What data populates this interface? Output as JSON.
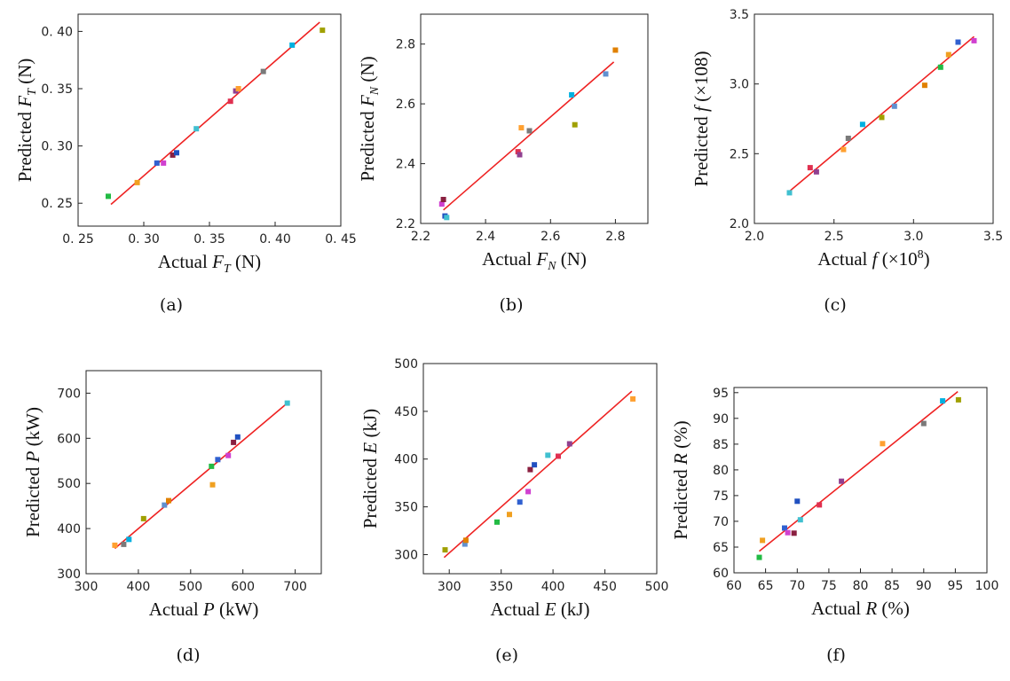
{
  "figure": {
    "point_colors": [
      "#22bb44",
      "#f0a020",
      "#3060d0",
      "#d040d0",
      "#8a2040",
      "#2050c0",
      "#40c0d0",
      "#e03050",
      "#904090",
      "#ffa030",
      "#7a7a7a",
      "#00b0e0",
      "#a0a000",
      "#6090d0",
      "#e08000"
    ],
    "fit_line_color": "#ee2222"
  },
  "chart_data": [
    {
      "type": "scatter",
      "caption": "(a)",
      "xlabel": {
        "pre": "Actual ",
        "var": "F",
        "sub": "T",
        "post": " (N)"
      },
      "ylabel": {
        "pre": "Predicted ",
        "var": "F",
        "sub": "T",
        "post": " (N)"
      },
      "xlim": [
        0.25,
        0.45
      ],
      "ylim": [
        0.23,
        0.415
      ],
      "xticks": [
        "0. 25",
        "0. 30",
        "0. 35",
        "0. 40",
        "0. 45"
      ],
      "xtick_values": [
        0.25,
        0.3,
        0.35,
        0.4,
        0.45
      ],
      "yticks": [
        "0. 25",
        "0. 30",
        "0. 35",
        "0. 40"
      ],
      "ytick_values": [
        0.25,
        0.3,
        0.35,
        0.4
      ],
      "x": [
        0.273,
        0.295,
        0.31,
        0.315,
        0.322,
        0.325,
        0.34,
        0.366,
        0.37,
        0.372,
        0.391,
        0.413,
        0.436
      ],
      "y": [
        0.256,
        0.268,
        0.285,
        0.285,
        0.292,
        0.294,
        0.315,
        0.339,
        0.348,
        0.35,
        0.365,
        0.388,
        0.401
      ],
      "fit": [
        [
          0.275,
          0.249
        ],
        [
          0.434,
          0.408
        ]
      ]
    },
    {
      "type": "scatter",
      "caption": "(b)",
      "xlabel": {
        "pre": "Actual ",
        "var": "F",
        "sub": "N",
        "post": " (N)"
      },
      "ylabel": {
        "pre": "Predicted ",
        "var": "F",
        "sub": "N",
        "post": " (N)"
      },
      "xlim": [
        2.2,
        2.9
      ],
      "ylim": [
        2.2,
        2.9
      ],
      "xticks": [
        "2.2",
        "2.4",
        "2.6",
        "2.8"
      ],
      "xtick_values": [
        2.2,
        2.4,
        2.6,
        2.8
      ],
      "yticks": [
        "2.2",
        "2.4",
        "2.6",
        "2.8"
      ],
      "ytick_values": [
        2.2,
        2.4,
        2.6,
        2.8
      ],
      "x": [
        2.265,
        2.27,
        2.275,
        2.28,
        2.5,
        2.505,
        2.51,
        2.535,
        2.665,
        2.675,
        2.77,
        2.8
      ],
      "y": [
        2.265,
        2.28,
        2.225,
        2.22,
        2.44,
        2.43,
        2.52,
        2.51,
        2.63,
        2.53,
        2.7,
        2.78
      ],
      "fit": [
        [
          2.27,
          2.245
        ],
        [
          2.795,
          2.74
        ]
      ]
    },
    {
      "type": "scatter",
      "caption": "(c)",
      "xlabel": {
        "pre": "Actual  ",
        "var": "f",
        "sub": "",
        "post": " (×10",
        "sup": "8",
        "post2": ")"
      },
      "ylabel": {
        "pre": "Predicted  ",
        "var": "f",
        "sub": "",
        "post": " (×108)"
      },
      "xlim": [
        2.0,
        3.5
      ],
      "ylim": [
        2.0,
        3.5
      ],
      "xticks": [
        "2.0",
        "2.5",
        "3.0",
        "3.5"
      ],
      "xtick_values": [
        2.0,
        2.5,
        3.0,
        3.5
      ],
      "yticks": [
        "2.0",
        "2.5",
        "3.0",
        "3.5"
      ],
      "ytick_values": [
        2.0,
        2.5,
        3.0,
        3.5
      ],
      "x": [
        2.22,
        2.35,
        2.39,
        2.56,
        2.59,
        2.68,
        2.8,
        2.88,
        3.07,
        3.17,
        3.22,
        3.28,
        3.38
      ],
      "y": [
        2.22,
        2.4,
        2.37,
        2.53,
        2.61,
        2.71,
        2.76,
        2.84,
        2.99,
        3.12,
        3.21,
        3.3,
        3.31
      ],
      "fit": [
        [
          2.22,
          2.23
        ],
        [
          3.38,
          3.34
        ]
      ]
    },
    {
      "type": "scatter",
      "caption": "(d)",
      "xlabel": {
        "pre": "Actual  ",
        "var": "P",
        "sub": "",
        "post": "  (kW)"
      },
      "ylabel": {
        "pre": "Predicted  ",
        "var": "P",
        "sub": "",
        "post": "  (kW)"
      },
      "xlim": [
        300,
        750
      ],
      "ylim": [
        300,
        750
      ],
      "xticks": [
        "300",
        "400",
        "500",
        "600",
        "700"
      ],
      "xtick_values": [
        300,
        400,
        500,
        600,
        700
      ],
      "yticks": [
        "300",
        "400",
        "500",
        "600",
        "700"
      ],
      "ytick_values": [
        300,
        400,
        500,
        600,
        700
      ],
      "x": [
        355,
        372,
        382,
        410,
        450,
        458,
        540,
        542,
        552,
        572,
        582,
        590,
        685
      ],
      "y": [
        363,
        365,
        376,
        422,
        452,
        462,
        538,
        497,
        553,
        562,
        591,
        603,
        678
      ],
      "fit": [
        [
          355,
          356
        ],
        [
          685,
          678
        ]
      ]
    },
    {
      "type": "scatter",
      "caption": "(e)",
      "xlabel": {
        "pre": "Actual ",
        "var": "E",
        "sub": "",
        "post": " (kJ)"
      },
      "ylabel": {
        "pre": "Predicted ",
        "var": "E",
        "sub": "",
        "post": " (kJ)"
      },
      "xlim": [
        275,
        500
      ],
      "ylim": [
        280,
        500
      ],
      "xticks": [
        "300",
        "350",
        "400",
        "450",
        "500"
      ],
      "xtick_values": [
        300,
        350,
        400,
        450,
        500
      ],
      "yticks": [
        "300",
        "350",
        "400",
        "450",
        "500"
      ],
      "ytick_values": [
        300,
        350,
        400,
        450,
        500
      ],
      "x": [
        296,
        315,
        316,
        346,
        358,
        368,
        376,
        378,
        382,
        395,
        405,
        416,
        477
      ],
      "y": [
        305,
        311,
        315,
        334,
        342,
        355,
        366,
        389,
        394,
        404,
        403,
        416,
        463
      ],
      "fit": [
        [
          295,
          297
        ],
        [
          476,
          471
        ]
      ]
    },
    {
      "type": "scatter",
      "caption": "(f)",
      "xlabel": {
        "pre": "Actual  ",
        "var": "R",
        "sub": "",
        "post": "  (%)"
      },
      "ylabel": {
        "pre": "Predicted  ",
        "var": "R",
        "sub": "",
        "post": "  (%)"
      },
      "xlim": [
        60,
        100
      ],
      "ylim": [
        60,
        96
      ],
      "xticks": [
        "60",
        "65",
        "70",
        "75",
        "80",
        "85",
        "90",
        "95",
        "100"
      ],
      "xtick_values": [
        60,
        65,
        70,
        75,
        80,
        85,
        90,
        95,
        100
      ],
      "yticks": [
        "60",
        "65",
        "70",
        "75",
        "80",
        "85",
        "90",
        "95"
      ],
      "ytick_values": [
        60,
        65,
        70,
        75,
        80,
        85,
        90,
        95
      ],
      "x": [
        64,
        64.5,
        68,
        68.5,
        69.5,
        70,
        70.5,
        73.5,
        77,
        83.5,
        90,
        93,
        95.5
      ],
      "y": [
        63,
        66.3,
        68.7,
        67.8,
        67.7,
        73.9,
        70.3,
        73.2,
        77.8,
        85.1,
        89,
        93.4,
        93.6
      ],
      "fit": [
        [
          64,
          64.2
        ],
        [
          95.4,
          95.2
        ]
      ]
    }
  ]
}
